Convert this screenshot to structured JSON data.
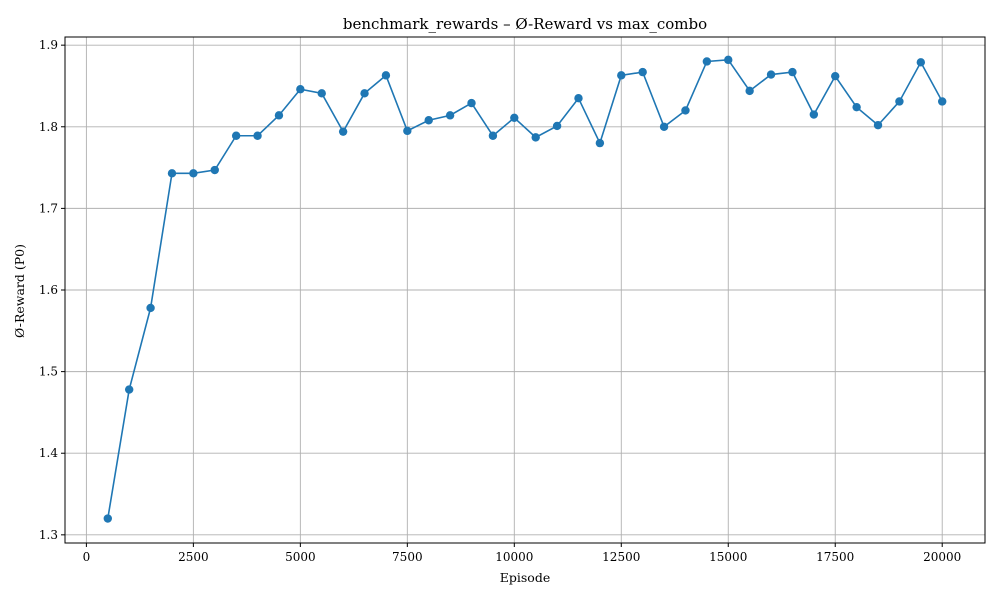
{
  "chart_data": {
    "type": "line",
    "title": "benchmark_rewards – Ø-Reward vs max_combo",
    "xlabel": "Episode",
    "ylabel": "Ø-Reward (P0)",
    "xlim": [
      -500,
      21000
    ],
    "ylim": [
      1.29,
      1.91
    ],
    "xticks": [
      0,
      2500,
      5000,
      7500,
      10000,
      12500,
      15000,
      17500,
      20000
    ],
    "yticks": [
      1.3,
      1.4,
      1.5,
      1.6,
      1.7,
      1.8,
      1.9
    ],
    "xtick_labels": [
      "0",
      "2500",
      "5000",
      "7500",
      "10000",
      "12500",
      "15000",
      "17500",
      "20000"
    ],
    "ytick_labels": [
      "1.3",
      "1.4",
      "1.5",
      "1.6",
      "1.7",
      "1.8",
      "1.9"
    ],
    "grid": true,
    "series": [
      {
        "color": "#1f77b4",
        "marker": "circle",
        "x": [
          500,
          1000,
          1500,
          2000,
          2500,
          3000,
          3500,
          4000,
          4500,
          5000,
          5500,
          6000,
          6500,
          7000,
          7500,
          8000,
          8500,
          9000,
          9500,
          10000,
          10500,
          11000,
          11500,
          12000,
          12500,
          13000,
          13500,
          14000,
          14500,
          15000,
          15500,
          16000,
          16500,
          17000,
          17500,
          18000,
          18500,
          19000,
          19500,
          20000
        ],
        "y": [
          1.32,
          1.478,
          1.578,
          1.743,
          1.743,
          1.747,
          1.789,
          1.789,
          1.814,
          1.846,
          1.841,
          1.794,
          1.841,
          1.863,
          1.795,
          1.808,
          1.814,
          1.829,
          1.789,
          1.811,
          1.787,
          1.801,
          1.835,
          1.78,
          1.863,
          1.867,
          1.8,
          1.82,
          1.88,
          1.882,
          1.844,
          1.864,
          1.867,
          1.815,
          1.862,
          1.824,
          1.802,
          1.831,
          1.879,
          1.831
        ]
      }
    ]
  }
}
